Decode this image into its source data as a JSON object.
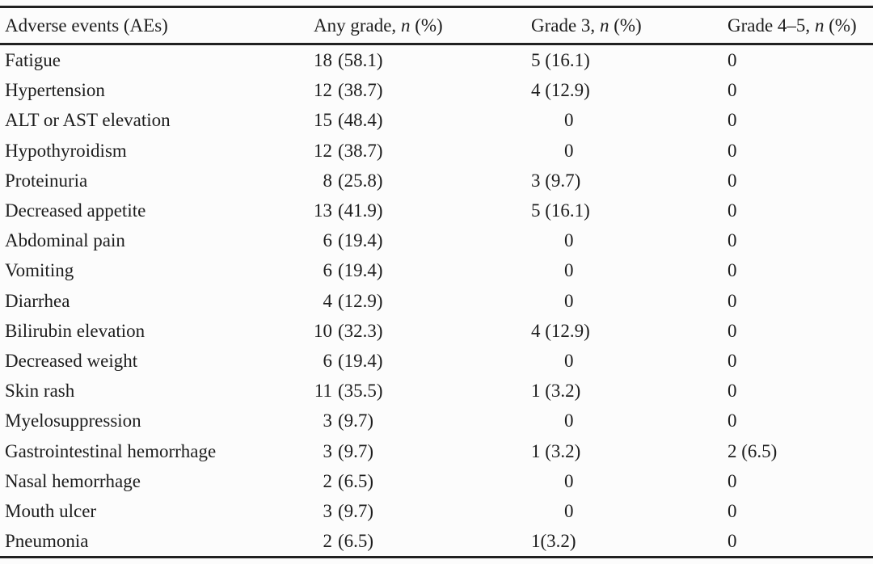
{
  "table": {
    "headers": [
      {
        "prefix": "Adverse events (AEs)",
        "italic": "",
        "suffix": ""
      },
      {
        "prefix": "Any grade, ",
        "italic": "n",
        "suffix": " (%)"
      },
      {
        "prefix": "Grade 3, ",
        "italic": "n",
        "suffix": " (%)"
      },
      {
        "prefix": "Grade 4–5, ",
        "italic": "n",
        "suffix": " (%)"
      }
    ],
    "rows": [
      {
        "event": "Fatigue",
        "any_n": "18",
        "any_pct": "(58.1)",
        "grade3": "5 (16.1)",
        "grade45": "0"
      },
      {
        "event": "Hypertension",
        "any_n": "12",
        "any_pct": "(38.7)",
        "grade3": "4 (12.9)",
        "grade45": "0"
      },
      {
        "event": "ALT or AST elevation",
        "any_n": "15",
        "any_pct": "(48.4)",
        "grade3": "0",
        "grade45": "0"
      },
      {
        "event": "Hypothyroidism",
        "any_n": "12",
        "any_pct": "(38.7)",
        "grade3": "0",
        "grade45": "0"
      },
      {
        "event": "Proteinuria",
        "any_n": "8",
        "any_pct": "(25.8)",
        "grade3": "3 (9.7)",
        "grade45": "0"
      },
      {
        "event": "Decreased appetite",
        "any_n": "13",
        "any_pct": "(41.9)",
        "grade3": "5 (16.1)",
        "grade45": "0"
      },
      {
        "event": "Abdominal pain",
        "any_n": "6",
        "any_pct": "(19.4)",
        "grade3": "0",
        "grade45": "0"
      },
      {
        "event": "Vomiting",
        "any_n": "6",
        "any_pct": "(19.4)",
        "grade3": "0",
        "grade45": "0"
      },
      {
        "event": "Diarrhea",
        "any_n": "4",
        "any_pct": "(12.9)",
        "grade3": "0",
        "grade45": "0"
      },
      {
        "event": "Bilirubin elevation",
        "any_n": "10",
        "any_pct": "(32.3)",
        "grade3": "4 (12.9)",
        "grade45": "0"
      },
      {
        "event": "Decreased weight",
        "any_n": "6",
        "any_pct": "(19.4)",
        "grade3": "0",
        "grade45": "0"
      },
      {
        "event": "Skin rash",
        "any_n": "11",
        "any_pct": "(35.5)",
        "grade3": "1 (3.2)",
        "grade45": "0"
      },
      {
        "event": "Myelosuppression",
        "any_n": "3",
        "any_pct": "(9.7)",
        "grade3": "0",
        "grade45": "0"
      },
      {
        "event": "Gastrointestinal hemorrhage",
        "any_n": "3",
        "any_pct": "(9.7)",
        "grade3": "1 (3.2)",
        "grade45": "2 (6.5)"
      },
      {
        "event": "Nasal hemorrhage",
        "any_n": "2",
        "any_pct": "(6.5)",
        "grade3": "0",
        "grade45": "0"
      },
      {
        "event": "Mouth ulcer",
        "any_n": "3",
        "any_pct": "(9.7)",
        "grade3": "0",
        "grade45": "0"
      },
      {
        "event": "Pneumonia",
        "any_n": "2",
        "any_pct": "(6.5)",
        "grade3": "1(3.2)",
        "grade45": "0"
      }
    ],
    "colors": {
      "rule": "#212121",
      "text": "#1d1d1d",
      "background": "#fcfcfc"
    }
  }
}
